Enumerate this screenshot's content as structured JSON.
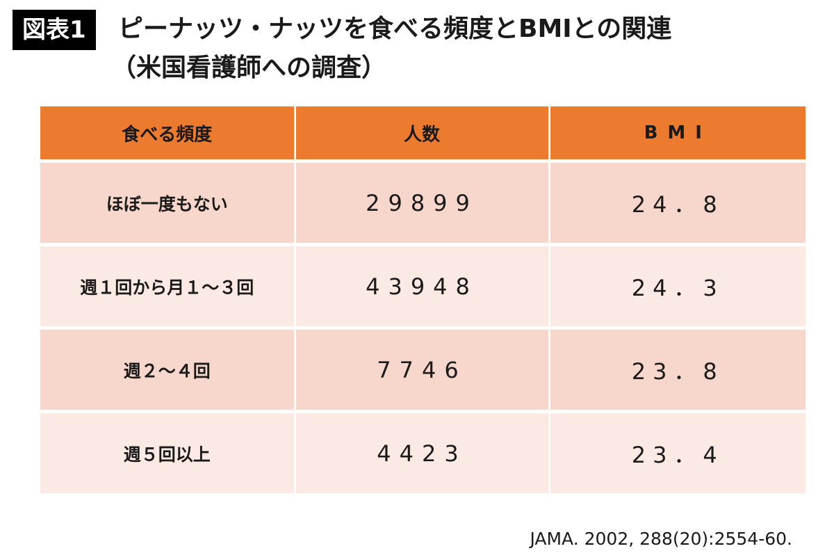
{
  "figure_label": "図表1",
  "title_line1": "ピーナッツ・ナッツを食べる頻度とBMIとの関連",
  "title_line2": "（米国看護師への調査）",
  "table": {
    "headers": [
      "食べる頻度",
      "人数",
      "BMI"
    ],
    "rows": [
      {
        "frequency": "ほぼ一度もない",
        "count": "29899",
        "bmi": "24．8"
      },
      {
        "frequency": "週１回から月１～３回",
        "count": "43948",
        "bmi": "24．3"
      },
      {
        "frequency": "週２～４回",
        "count": "7746",
        "bmi": "23．8"
      },
      {
        "frequency": "週５回以上",
        "count": "4423",
        "bmi": "23．4"
      }
    ],
    "colors": {
      "header_bg": "#ec7b30",
      "row_odd_bg": "#f7d6cb",
      "row_even_bg": "#fbe9e4"
    }
  },
  "source": "JAMA. 2002, 288(20):2554-60."
}
